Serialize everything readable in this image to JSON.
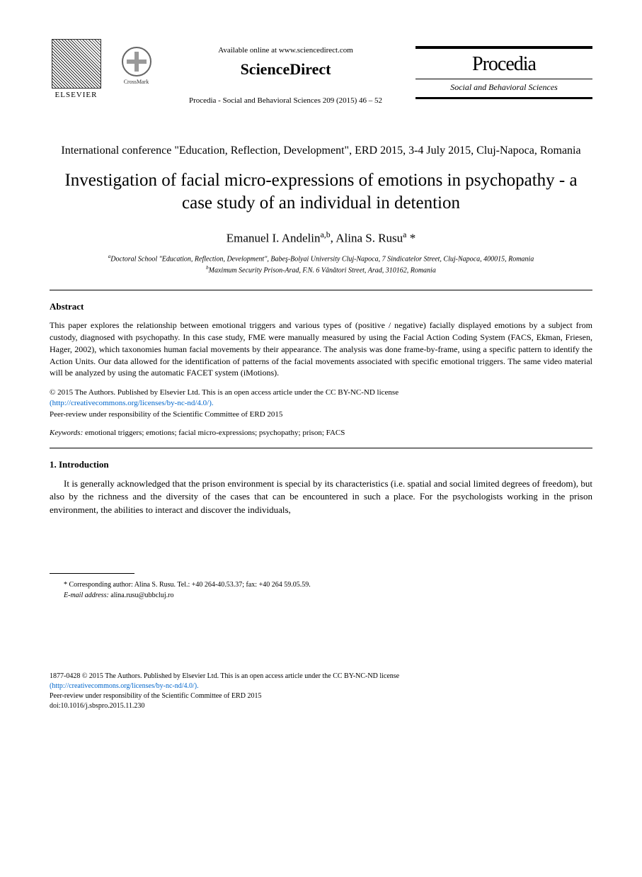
{
  "header": {
    "elsevier_label": "ELSEVIER",
    "crossmark_label": "CrossMark",
    "available_online": "Available online at www.sciencedirect.com",
    "sciencedirect": "ScienceDirect",
    "citation": "Procedia - Social and Behavioral Sciences 209 (2015) 46 – 52",
    "procedia_title": "Procedia",
    "procedia_subtitle": "Social and Behavioral Sciences"
  },
  "conference": "International conference \"Education, Reflection, Development\", ERD 2015, 3-4 July 2015, Cluj-Napoca, Romania",
  "title": "Investigation of facial micro-expressions of emotions in psychopathy - a case study of an individual in detention",
  "authors": "Emanuel I. Andelin",
  "authors_sup1": "a,b",
  "authors2": ", Alina S. Rusu",
  "authors_sup2": "a",
  "authors_asterisk": " *",
  "affiliations": {
    "a": "Doctoral School \"Education, Reflection, Development\", Babeş-Bolyai University Cluj-Napoca, 7 Sindicatelor Street, Cluj-Napoca, 400015, Romania",
    "b": "Maximum Security Prison-Arad, F.N. 6 Vânători Street,  Arad, 310162, Romania"
  },
  "abstract": {
    "heading": "Abstract",
    "text": "This paper explores the relationship between emotional triggers and various types of (positive / negative) facially displayed emotions by a subject from custody, diagnosed with psychopathy. In this case study, FME were manually measured by using the Facial Action Coding System (FACS, Ekman, Friesen, Hager, 2002), which taxonomies human facial movements by their appearance. The analysis was done frame-by-frame, using a specific pattern to identify the Action Units. Our data allowed for the identification of patterns of the facial movements associated with specific emotional triggers. The same video material will be analyzed by using the automatic FACET system (iMotions)."
  },
  "copyright": {
    "line1": "© 2015 The Authors. Published by Elsevier Ltd. This is an open access article under the CC BY-NC-ND license",
    "link": "(http://creativecommons.org/licenses/by-nc-nd/4.0/).",
    "line2": "Peer-review under responsibility of the Scientific Committee of ERD 2015"
  },
  "keywords": {
    "label": "Keywords:",
    "text": " emotional triggers; emotions; facial micro-expressions; psychopathy; prison; FACS"
  },
  "introduction": {
    "heading": "1. Introduction",
    "text": "It is generally acknowledged that the prison environment is special by its characteristics (i.e. spatial and social limited degrees of freedom), but also by the richness and the diversity of the cases that can be encountered in such a place. For the psychologists working in the prison environment, the abilities to interact and discover the individuals,"
  },
  "footnote": {
    "corresponding": "* Corresponding author: Alina S. Rusu. Tel.: +40 264-40.53.37; fax: +40 264 59.05.59.",
    "email_label": "E-mail address:",
    "email": " alina.rusu@ubbcluj.ro"
  },
  "footer": {
    "line1": "1877-0428 © 2015 The Authors. Published by Elsevier Ltd. This is an open access article under the CC BY-NC-ND license",
    "link": "(http://creativecommons.org/licenses/by-nc-nd/4.0/).",
    "line2": "Peer-review under responsibility of the Scientific Committee of ERD 2015",
    "doi": "doi:10.1016/j.sbspro.2015.11.230"
  }
}
